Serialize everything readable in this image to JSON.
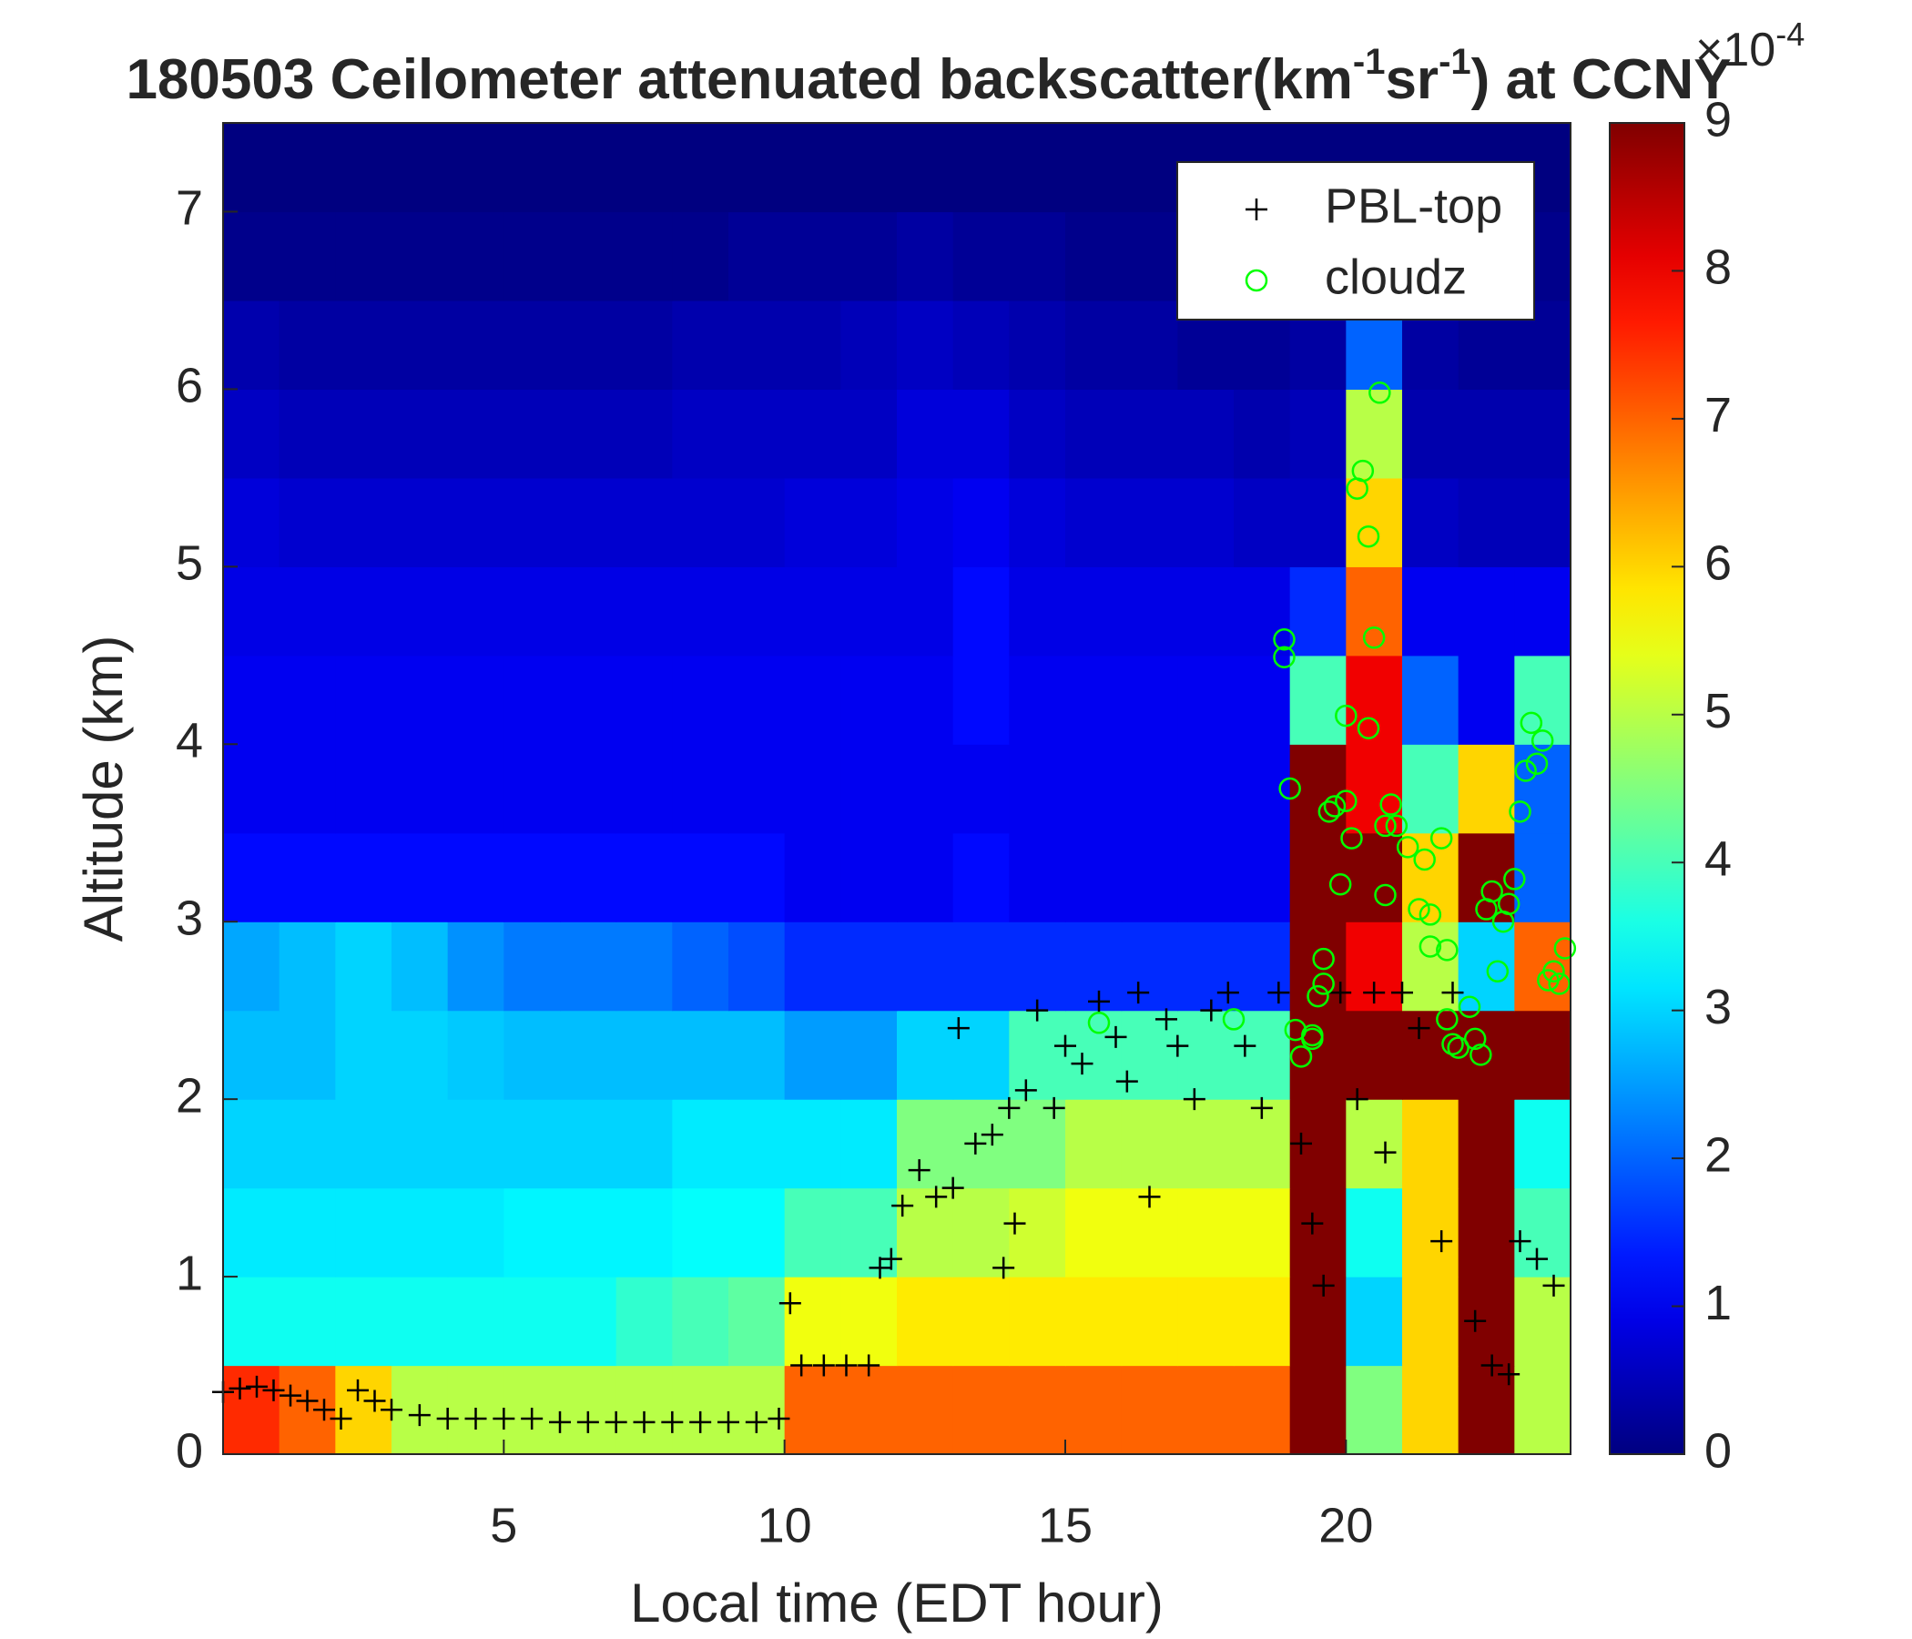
{
  "chart_data": {
    "type": "heatmap",
    "title_parts": [
      {
        "text": "180503 Ceilometer attenuated backscatter(km",
        "sup": false
      },
      {
        "text": "-1",
        "sup": true
      },
      {
        "text": "sr",
        "sup": false
      },
      {
        "text": "-1",
        "sup": true
      },
      {
        "text": ") at CCNY",
        "sup": false
      }
    ],
    "xlabel": "Local time (EDT hour)",
    "ylabel": "Altitude (km)",
    "xlim": [
      0,
      24
    ],
    "xticks": [
      5,
      10,
      15,
      20
    ],
    "ylim": [
      0,
      7.5
    ],
    "yticks": [
      0,
      1,
      2,
      3,
      4,
      5,
      6,
      7
    ],
    "clim": [
      0,
      9
    ],
    "cticks": [
      0,
      1,
      2,
      3,
      4,
      5,
      6,
      7,
      8,
      9
    ],
    "colorbar_label": {
      "base": "×10",
      "exponent": "-4"
    },
    "colormap": "jet",
    "x": [
      0.5,
      1.5,
      2.5,
      3.5,
      4.5,
      5.5,
      6.5,
      7.5,
      8.5,
      9.5,
      10.5,
      11.5,
      12.5,
      13.5,
      14.5,
      15.5,
      16.5,
      17.5,
      18.5,
      19.5,
      20.5,
      21.5,
      22.5,
      23.5
    ],
    "y": [
      0.25,
      0.75,
      1.25,
      1.75,
      2.25,
      2.75,
      3.25,
      3.75,
      4.25,
      4.75,
      5.25,
      5.75,
      6.25,
      6.75,
      7.25
    ],
    "z": [
      [
        7.5,
        7,
        6,
        5,
        5,
        5,
        5,
        5,
        5,
        5,
        7,
        7,
        7,
        7,
        7,
        7,
        7,
        7,
        7,
        9,
        4.5,
        6,
        9,
        5
      ],
      [
        3.5,
        3.5,
        3.5,
        3.5,
        3.5,
        3.5,
        3.5,
        3.8,
        4,
        4.2,
        5.5,
        5.5,
        5.8,
        5.8,
        5.8,
        5.8,
        5.8,
        5.8,
        5.8,
        9,
        3,
        6,
        9,
        5
      ],
      [
        3.2,
        3.2,
        3.2,
        3.2,
        3.2,
        3.3,
        3.3,
        3.3,
        3.4,
        3.4,
        4,
        4,
        5,
        5,
        5.2,
        5.5,
        5.5,
        5.5,
        5.5,
        9,
        3.5,
        6,
        9,
        4
      ],
      [
        3,
        3,
        3,
        3,
        3,
        3,
        3,
        3,
        3.2,
        3.2,
        3.2,
        3.2,
        4.5,
        4.5,
        4.5,
        5,
        5,
        5,
        5,
        9,
        5,
        6,
        9,
        3.5
      ],
      [
        2.8,
        2.8,
        3,
        3,
        2.9,
        2.8,
        2.8,
        2.8,
        2.8,
        2.8,
        2.5,
        2.5,
        3,
        3,
        4,
        4,
        4,
        4,
        4,
        9,
        9,
        9,
        9,
        9
      ],
      [
        2.6,
        2.8,
        3,
        2.8,
        2.4,
        2.2,
        2.2,
        2.2,
        2,
        1.8,
        1.5,
        1.5,
        1.5,
        1.5,
        1.5,
        1.5,
        1.5,
        1.5,
        1.5,
        9,
        8,
        5,
        3,
        7
      ],
      [
        1.2,
        1.2,
        1.2,
        1.2,
        1.2,
        1.2,
        1.2,
        1.2,
        1.2,
        1.2,
        1,
        1,
        1,
        1.2,
        1,
        1,
        1,
        1,
        1,
        9,
        9,
        6,
        9,
        2
      ],
      [
        1,
        1,
        1,
        1,
        1,
        1,
        1,
        1,
        1,
        1,
        1,
        1,
        1,
        1,
        1,
        1,
        1,
        1,
        1,
        9,
        8,
        4,
        6,
        2
      ],
      [
        1,
        1,
        1,
        1,
        1,
        1,
        1,
        1,
        1,
        1,
        1,
        1,
        1,
        1.2,
        1,
        1,
        1,
        1,
        1,
        4,
        8,
        2,
        1,
        4
      ],
      [
        0.9,
        0.9,
        0.9,
        0.9,
        0.9,
        0.9,
        0.9,
        0.9,
        0.9,
        0.9,
        0.9,
        0.9,
        0.9,
        1.2,
        0.9,
        0.9,
        0.9,
        0.9,
        0.9,
        1.5,
        7,
        1,
        1,
        1
      ],
      [
        0.8,
        0.7,
        0.7,
        0.7,
        0.7,
        0.7,
        0.7,
        0.7,
        0.7,
        0.7,
        0.8,
        0.8,
        0.9,
        1,
        0.8,
        0.7,
        0.7,
        0.7,
        0.6,
        0.6,
        6,
        0.6,
        0.5,
        0.5
      ],
      [
        0.6,
        0.5,
        0.5,
        0.5,
        0.5,
        0.5,
        0.5,
        0.5,
        0.6,
        0.6,
        0.6,
        0.6,
        0.8,
        0.8,
        0.6,
        0.5,
        0.5,
        0.5,
        0.4,
        0.5,
        5,
        0.4,
        0.4,
        0.4
      ],
      [
        0.4,
        0.3,
        0.3,
        0.3,
        0.3,
        0.3,
        0.3,
        0.3,
        0.4,
        0.4,
        0.4,
        0.5,
        0.6,
        0.5,
        0.4,
        0.3,
        0.3,
        0.2,
        0.2,
        0.3,
        2,
        0.3,
        0.2,
        0.2
      ],
      [
        0.1,
        0.1,
        0.1,
        0.1,
        0.1,
        0.1,
        0.1,
        0.1,
        0.1,
        0.2,
        0.2,
        0.2,
        0.3,
        0.2,
        0.2,
        0.1,
        0.1,
        0.1,
        0.1,
        0.1,
        0.2,
        0.1,
        0.1,
        0.1
      ],
      [
        0,
        0,
        0,
        0,
        0,
        0,
        0,
        0,
        0,
        0,
        0,
        0,
        0,
        0,
        0,
        0,
        0,
        0,
        0,
        0,
        0,
        0,
        0,
        0
      ]
    ],
    "legend": "upper right",
    "series": [
      {
        "name": "PBL-top",
        "marker": "+",
        "color": "#000000",
        "x": [
          0,
          0.3,
          0.6,
          0.9,
          1.2,
          1.5,
          1.8,
          2.1,
          2.4,
          2.7,
          3,
          3.5,
          4,
          4.5,
          5,
          5.5,
          6,
          6.5,
          7,
          7.5,
          8,
          8.5,
          9,
          9.5,
          9.9,
          10.1,
          10.3,
          10.7,
          11.1,
          11.5,
          11.7,
          11.9,
          12.1,
          12.4,
          12.7,
          13,
          13.1,
          13.4,
          13.7,
          13.9,
          14,
          14.1,
          14.3,
          14.5,
          14.8,
          15,
          15.3,
          15.6,
          15.9,
          16.1,
          16.3,
          16.5,
          16.8,
          17,
          17.3,
          17.6,
          17.9,
          18.2,
          18.5,
          18.8,
          19.2,
          19.4,
          19.6,
          19.9,
          20.2,
          20.5,
          20.7,
          21,
          21.3,
          21.7,
          21.9,
          22.3,
          22.6,
          22.9,
          23.1,
          23.4,
          23.7
        ],
        "values": [
          0.35,
          0.37,
          0.38,
          0.36,
          0.33,
          0.3,
          0.25,
          0.2,
          0.36,
          0.3,
          0.25,
          0.22,
          0.2,
          0.2,
          0.2,
          0.2,
          0.18,
          0.18,
          0.18,
          0.18,
          0.18,
          0.18,
          0.18,
          0.18,
          0.2,
          0.85,
          0.5,
          0.5,
          0.5,
          0.5,
          1.05,
          1.1,
          1.4,
          1.6,
          1.45,
          1.5,
          2.4,
          1.75,
          1.8,
          1.05,
          1.95,
          1.3,
          2.05,
          2.5,
          1.95,
          2.3,
          2.2,
          2.55,
          2.35,
          2.1,
          2.6,
          1.45,
          2.45,
          2.3,
          2,
          2.5,
          2.6,
          2.3,
          1.95,
          2.6,
          1.75,
          1.3,
          0.95,
          2.6,
          2,
          2.6,
          1.7,
          2.6,
          2.4,
          1.2,
          2.6,
          0.75,
          0.5,
          0.45,
          1.2,
          1.1,
          0.95
        ]
      },
      {
        "name": "cloudz",
        "marker": "o",
        "color": "#00ff00",
        "x": [
          15.6,
          18,
          18.9,
          18.9,
          19,
          19.1,
          19.2,
          19.4,
          19.4,
          19.5,
          19.6,
          19.6,
          19.7,
          19.8,
          19.9,
          20,
          20,
          20.1,
          20.2,
          20.3,
          20.4,
          20.4,
          20.5,
          20.6,
          20.7,
          20.7,
          20.8,
          20.9,
          21.1,
          21.3,
          21.4,
          21.5,
          21.5,
          21.7,
          21.8,
          21.8,
          21.9,
          22,
          22.2,
          22.3,
          22.4,
          22.5,
          22.6,
          22.7,
          22.8,
          22.9,
          23,
          23.1,
          23.2,
          23.3,
          23.4,
          23.5,
          23.6,
          23.7,
          23.8,
          23.9
        ],
        "values": [
          2.43,
          2.45,
          4.49,
          4.59,
          3.75,
          2.39,
          2.24,
          2.36,
          2.34,
          2.58,
          2.65,
          2.79,
          3.62,
          3.65,
          3.21,
          3.68,
          4.16,
          3.47,
          5.44,
          5.54,
          5.17,
          4.09,
          4.6,
          5.98,
          3.15,
          3.54,
          3.66,
          3.54,
          3.42,
          3.07,
          3.35,
          3.04,
          2.86,
          3.47,
          2.84,
          2.45,
          2.31,
          2.29,
          2.52,
          2.34,
          2.25,
          3.07,
          3.17,
          2.72,
          3,
          3.1,
          3.24,
          3.62,
          3.85,
          4.12,
          3.89,
          4.02,
          2.67,
          2.72,
          2.65,
          2.85
        ]
      }
    ]
  }
}
